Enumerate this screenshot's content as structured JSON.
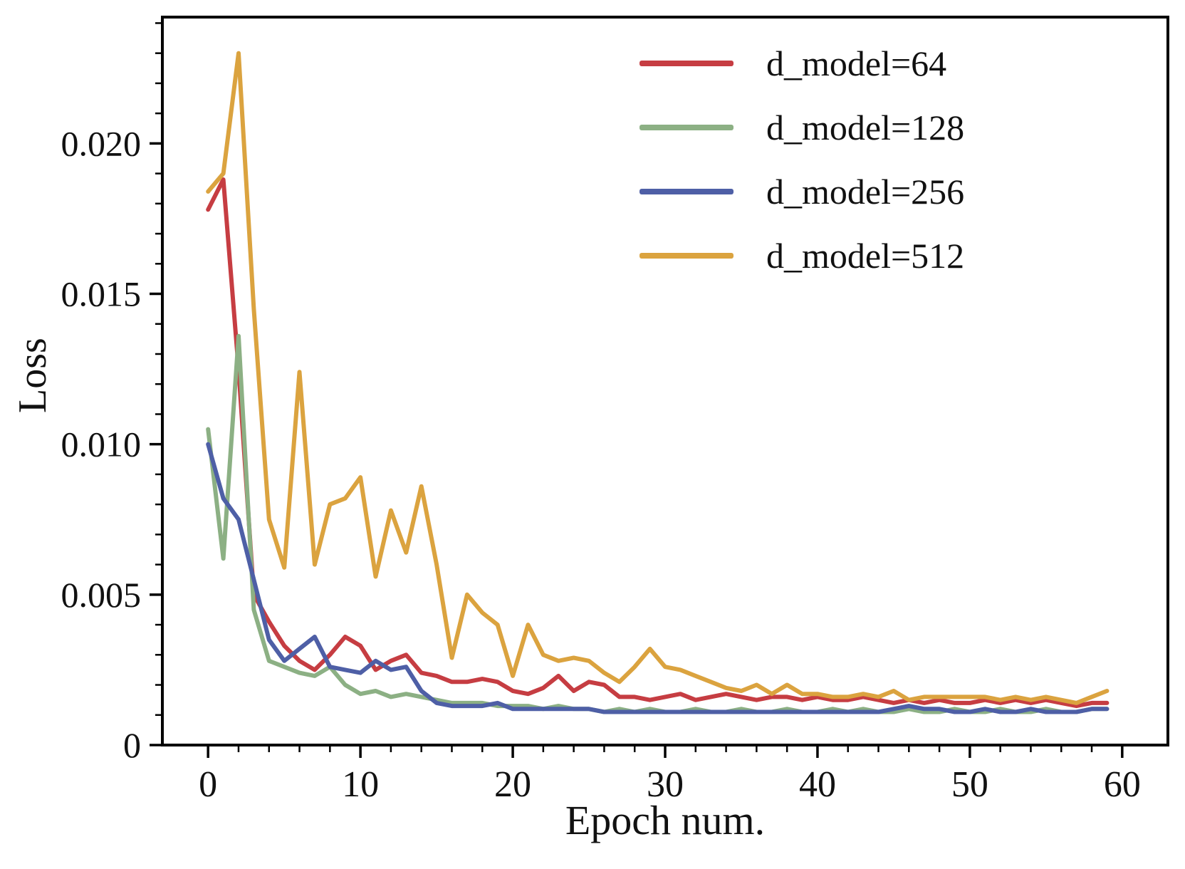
{
  "chart_data": {
    "type": "line",
    "title": "",
    "xlabel": "Epoch num.",
    "ylabel": "Loss",
    "x_unit": "epoch index starting at 0",
    "xlim": [
      -3,
      63
    ],
    "ylim": [
      0,
      0.0242
    ],
    "grid": false,
    "legend_position": "upper right",
    "line_width": 6,
    "x_minor_step": 2,
    "y_minor_step": 0.001,
    "xticks": [
      {
        "v": 0,
        "label": "0"
      },
      {
        "v": 10,
        "label": "10"
      },
      {
        "v": 20,
        "label": "20"
      },
      {
        "v": 30,
        "label": "30"
      },
      {
        "v": 40,
        "label": "40"
      },
      {
        "v": 50,
        "label": "50"
      },
      {
        "v": 60,
        "label": "60"
      }
    ],
    "yticks": [
      {
        "v": 0,
        "label": "0"
      },
      {
        "v": 0.005,
        "label": "0.005"
      },
      {
        "v": 0.01,
        "label": "0.010"
      },
      {
        "v": 0.015,
        "label": "0.015"
      },
      {
        "v": 0.02,
        "label": "0.020"
      }
    ],
    "series": [
      {
        "name": "d_model=64",
        "color": "#c63d42",
        "values": [
          0.0178,
          0.0188,
          0.0125,
          0.005,
          0.0041,
          0.0033,
          0.0028,
          0.0025,
          0.003,
          0.0036,
          0.0033,
          0.0025,
          0.0028,
          0.003,
          0.0024,
          0.0023,
          0.0021,
          0.0021,
          0.0022,
          0.0021,
          0.0018,
          0.0017,
          0.0019,
          0.0023,
          0.0018,
          0.0021,
          0.002,
          0.0016,
          0.0016,
          0.0015,
          0.0016,
          0.0017,
          0.0015,
          0.0016,
          0.0017,
          0.0016,
          0.0015,
          0.0016,
          0.0016,
          0.0015,
          0.0016,
          0.0015,
          0.0015,
          0.0016,
          0.0015,
          0.0014,
          0.0015,
          0.0014,
          0.0015,
          0.0014,
          0.0014,
          0.0015,
          0.0014,
          0.0015,
          0.0014,
          0.0015,
          0.0014,
          0.0013,
          0.0014,
          0.0014
        ]
      },
      {
        "name": "d_model=128",
        "color": "#8cb084",
        "values": [
          0.0105,
          0.0062,
          0.0136,
          0.0045,
          0.0028,
          0.0026,
          0.0024,
          0.0023,
          0.0026,
          0.002,
          0.0017,
          0.0018,
          0.0016,
          0.0017,
          0.0016,
          0.0015,
          0.0014,
          0.0014,
          0.0014,
          0.0013,
          0.0013,
          0.0013,
          0.0012,
          0.0013,
          0.0012,
          0.0012,
          0.0011,
          0.0012,
          0.0011,
          0.0012,
          0.0011,
          0.0011,
          0.0012,
          0.0011,
          0.0011,
          0.0012,
          0.0011,
          0.0011,
          0.0012,
          0.0011,
          0.0011,
          0.0012,
          0.0011,
          0.0012,
          0.0011,
          0.0011,
          0.0012,
          0.0011,
          0.0011,
          0.0012,
          0.0011,
          0.0011,
          0.0012,
          0.0011,
          0.0011,
          0.0012,
          0.0011,
          0.0011,
          0.0012,
          0.0012
        ]
      },
      {
        "name": "d_model=256",
        "color": "#4e5fa6",
        "values": [
          0.01,
          0.0082,
          0.0075,
          0.0055,
          0.0035,
          0.0028,
          0.0032,
          0.0036,
          0.0026,
          0.0025,
          0.0024,
          0.0028,
          0.0025,
          0.0026,
          0.0018,
          0.0014,
          0.0013,
          0.0013,
          0.0013,
          0.0014,
          0.0012,
          0.0012,
          0.0012,
          0.0012,
          0.0012,
          0.0012,
          0.0011,
          0.0011,
          0.0011,
          0.0011,
          0.0011,
          0.0011,
          0.0011,
          0.0011,
          0.0011,
          0.0011,
          0.0011,
          0.0011,
          0.0011,
          0.0011,
          0.0011,
          0.0011,
          0.0011,
          0.0011,
          0.0011,
          0.0012,
          0.0013,
          0.0012,
          0.0012,
          0.0011,
          0.0011,
          0.0012,
          0.0011,
          0.0011,
          0.0012,
          0.0011,
          0.0011,
          0.0011,
          0.0012,
          0.0012
        ]
      },
      {
        "name": "d_model=512",
        "color": "#dba33f",
        "values": [
          0.0184,
          0.019,
          0.023,
          0.0145,
          0.0075,
          0.0059,
          0.0124,
          0.006,
          0.008,
          0.0082,
          0.0089,
          0.0056,
          0.0078,
          0.0064,
          0.0086,
          0.006,
          0.0029,
          0.005,
          0.0044,
          0.004,
          0.0023,
          0.004,
          0.003,
          0.0028,
          0.0029,
          0.0028,
          0.0024,
          0.0021,
          0.0026,
          0.0032,
          0.0026,
          0.0025,
          0.0023,
          0.0021,
          0.0019,
          0.0018,
          0.002,
          0.0017,
          0.002,
          0.0017,
          0.0017,
          0.0016,
          0.0016,
          0.0017,
          0.0016,
          0.0018,
          0.0015,
          0.0016,
          0.0016,
          0.0016,
          0.0016,
          0.0016,
          0.0015,
          0.0016,
          0.0015,
          0.0016,
          0.0015,
          0.0014,
          0.0016,
          0.0018
        ]
      }
    ]
  }
}
